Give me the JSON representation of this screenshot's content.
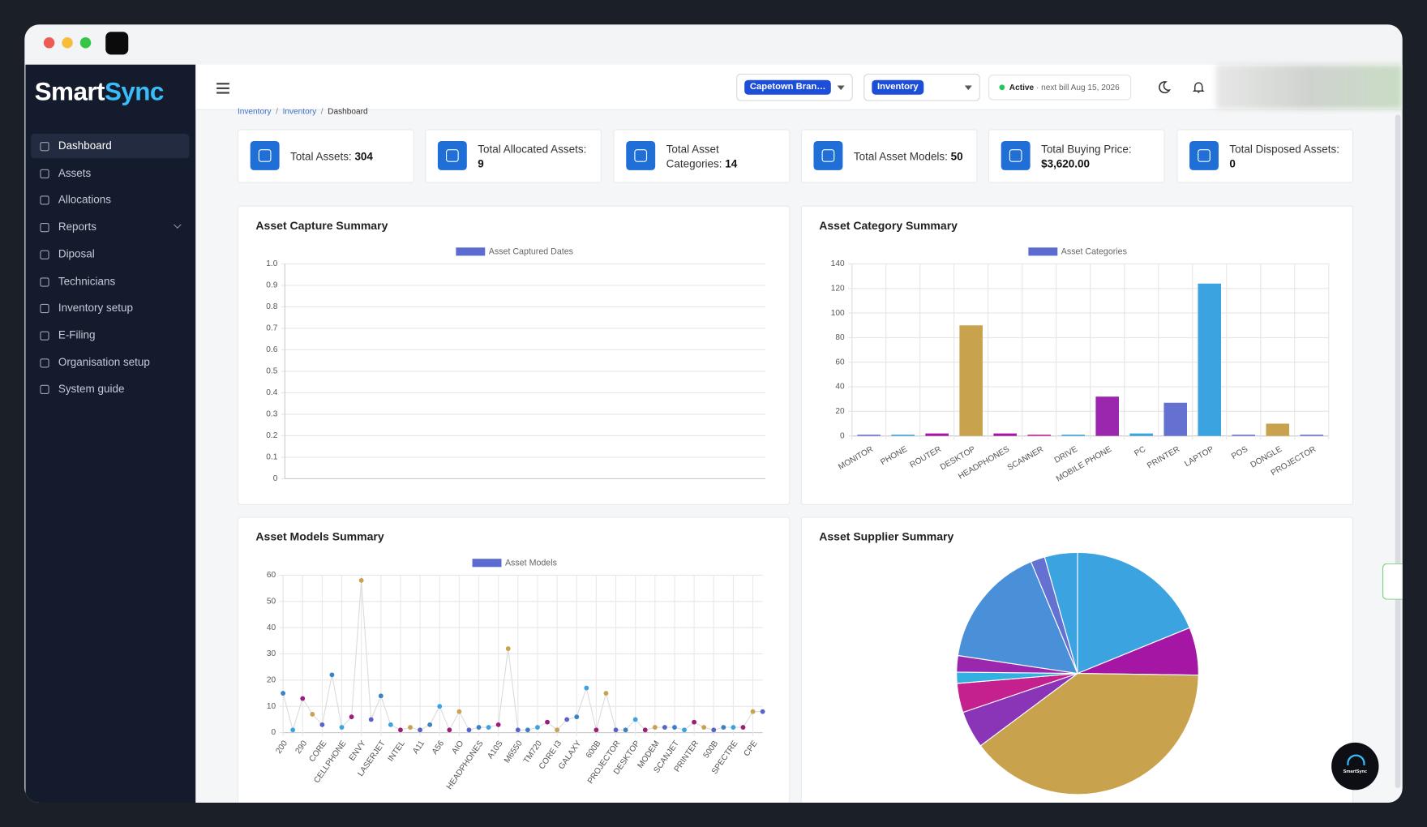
{
  "brand": {
    "part_a": "Smart",
    "part_b": "Sync"
  },
  "sidebar": {
    "items": [
      {
        "label": "Dashboard",
        "active": true
      },
      {
        "label": "Assets"
      },
      {
        "label": "Allocations"
      },
      {
        "label": "Reports",
        "submenu": true
      },
      {
        "label": "Diposal"
      },
      {
        "label": "Technicians"
      },
      {
        "label": "Inventory setup"
      },
      {
        "label": "E-Filing"
      },
      {
        "label": "Organisation setup"
      },
      {
        "label": "System guide"
      }
    ]
  },
  "header": {
    "branch": "Capetown Bran…",
    "module": "Inventory",
    "status": "Active",
    "bill": "· next bill Aug 15, 2026"
  },
  "breadcrumb": [
    "Inventory",
    "Inventory",
    "Dashboard"
  ],
  "stats": [
    {
      "label": "Total Assets:",
      "value": "304"
    },
    {
      "label": "Total Allocated Assets:",
      "value": "9"
    },
    {
      "label": "Total Asset Categories:",
      "value": "14"
    },
    {
      "label": "Total Asset Models:",
      "value": "50"
    },
    {
      "label": "Total Buying Price:",
      "value": "$3,620.00"
    },
    {
      "label": "Total Disposed Assets:",
      "value": "0"
    }
  ],
  "charts": [
    {
      "type": "line",
      "title": "Asset Capture Summary",
      "categories": [],
      "series": [
        {
          "name": "Asset Captured Dates",
          "color": "#5b6bd0",
          "values": []
        }
      ],
      "ylim": [
        0,
        1
      ],
      "yticks": [
        0,
        0.1,
        0.2,
        0.3,
        0.4,
        0.5,
        0.6,
        0.7,
        0.8,
        0.9,
        {
          "value": 1,
          "label": "1.0"
        }
      ],
      "grid": true
    },
    {
      "type": "bar",
      "title": "Asset Category Summary",
      "categories": [
        "MONITOR",
        "PHONE",
        "ROUTER",
        "DESKTOP",
        "HEADPHONES",
        "SCANNER",
        "DRIVE",
        "MOBILE PHONE",
        "PC",
        "PRINTER",
        "LAPTOP",
        "POS",
        "DONGLE",
        "PROJECTOR"
      ],
      "series": [
        {
          "name": "Asset Categories",
          "color": "#5b6bd0",
          "values": [
            1,
            1,
            2,
            90,
            2,
            1,
            1,
            32,
            2,
            27,
            124,
            1,
            10,
            1
          ],
          "colors": [
            "#6471d0",
            "#3ba3df",
            "#a516a5",
            "#c9a24d",
            "#a516a5",
            "#c4208e",
            "#3ba3df",
            "#9b27af",
            "#3ba3df",
            "#6471d0",
            "#3ba3df",
            "#6471d0",
            "#c9a24d",
            "#6471d0"
          ]
        }
      ],
      "ylim": [
        0,
        140
      ],
      "yticks": [
        0,
        20,
        40,
        60,
        80,
        100,
        120,
        140
      ],
      "grid": true
    },
    {
      "type": "line",
      "title": "Asset Models Summary",
      "categories": [
        "200",
        null,
        "290",
        null,
        "CORE",
        null,
        "CELLPHONE",
        null,
        "ENVY",
        null,
        "LASERJET",
        null,
        "INTEL",
        null,
        "A11",
        null,
        "A56",
        null,
        "AIO",
        null,
        "HEADPHONES",
        null,
        "A10S",
        null,
        "M6550",
        null,
        "TM720",
        null,
        "CORE I3",
        null,
        "GALAXY",
        null,
        "600B",
        null,
        "PROJECTOR",
        null,
        "DESKTOP",
        null,
        "MODEM",
        null,
        "SCANJET",
        null,
        "PRINTER",
        null,
        "500B",
        null,
        "SPECTRE",
        null,
        "CPE",
        null
      ],
      "series": [
        {
          "name": "Asset Models",
          "color": "#5b6bd0",
          "line_color": "#dcdcdc",
          "values": [
            15,
            1,
            13,
            7,
            3,
            22,
            2,
            6,
            58,
            5,
            14,
            3,
            1,
            2,
            1,
            3,
            10,
            1,
            8,
            1,
            2,
            2,
            3,
            32,
            1,
            1,
            2,
            4,
            1,
            5,
            6,
            17,
            1,
            15,
            1,
            1,
            5,
            1,
            2,
            2,
            2,
            1,
            4,
            2,
            1,
            2,
            2,
            2,
            8,
            8
          ],
          "point_colors": [
            "#3b82c4",
            "#3ba3df",
            "#9b1f7a",
            "#c9a24d",
            "#5a62c8"
          ]
        }
      ],
      "ylim": [
        0,
        60
      ],
      "yticks": [
        0,
        10,
        20,
        30,
        40,
        50,
        60
      ],
      "grid": true
    },
    {
      "type": "pie",
      "title": "Asset Supplier Summary",
      "values": [
        18.9,
        6.4,
        39.7,
        5,
        3.9,
        1.5,
        2.2,
        16.4,
        1.9,
        4.4
      ],
      "colors": [
        "#3ba3df",
        "#a516a5",
        "#c9a24d",
        "#8a35b8",
        "#c4208e",
        "#32b0e0",
        "#9b27af",
        "#4a90d9",
        "#6471d0",
        "#3ba3df"
      ]
    }
  ],
  "fab": "SmartSync"
}
